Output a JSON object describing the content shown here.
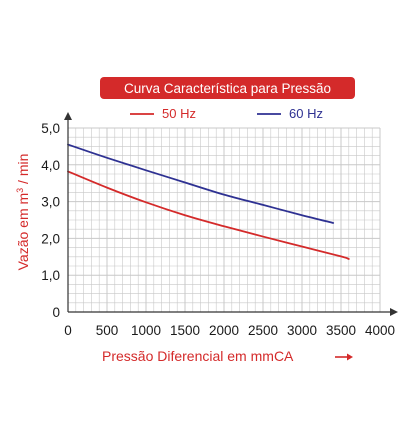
{
  "chart_data": {
    "type": "line",
    "title": "Curva Característica para Pressão",
    "xlabel": "Pressão Diferencial em mmCA",
    "ylabel_main": "Vazão em m",
    "ylabel_sup": "3",
    "ylabel_tail": " / min",
    "xlim": [
      0,
      4000
    ],
    "ylim": [
      0,
      5
    ],
    "x_ticks": [
      "0",
      "500",
      "1000",
      "1500",
      "2000",
      "2500",
      "3000",
      "3500",
      "4000"
    ],
    "y_ticks": [
      "0",
      "1,0",
      "2,0",
      "3,0",
      "4,0",
      "5,0"
    ],
    "grid": true,
    "legend_position": "top",
    "series": [
      {
        "name": "50 Hz",
        "color": "#d42a2a",
        "x": [
          0,
          500,
          1000,
          1500,
          2000,
          2500,
          3000,
          3500,
          3600
        ],
        "y": [
          3.82,
          3.38,
          2.98,
          2.63,
          2.33,
          2.05,
          1.78,
          1.51,
          1.44
        ]
      },
      {
        "name": "60 Hz",
        "color": "#2e3192",
        "x": [
          0,
          500,
          1000,
          1500,
          2000,
          2500,
          3000,
          3400
        ],
        "y": [
          4.55,
          4.19,
          3.85,
          3.52,
          3.19,
          2.91,
          2.63,
          2.42
        ]
      }
    ],
    "colors": {
      "title_bg": "#d42a2a",
      "title_text": "#ffffff",
      "grid": "#c8c8c8",
      "axis": "#333333",
      "xlabel": "#d42a2a",
      "ylabel": "#d42a2a"
    }
  }
}
